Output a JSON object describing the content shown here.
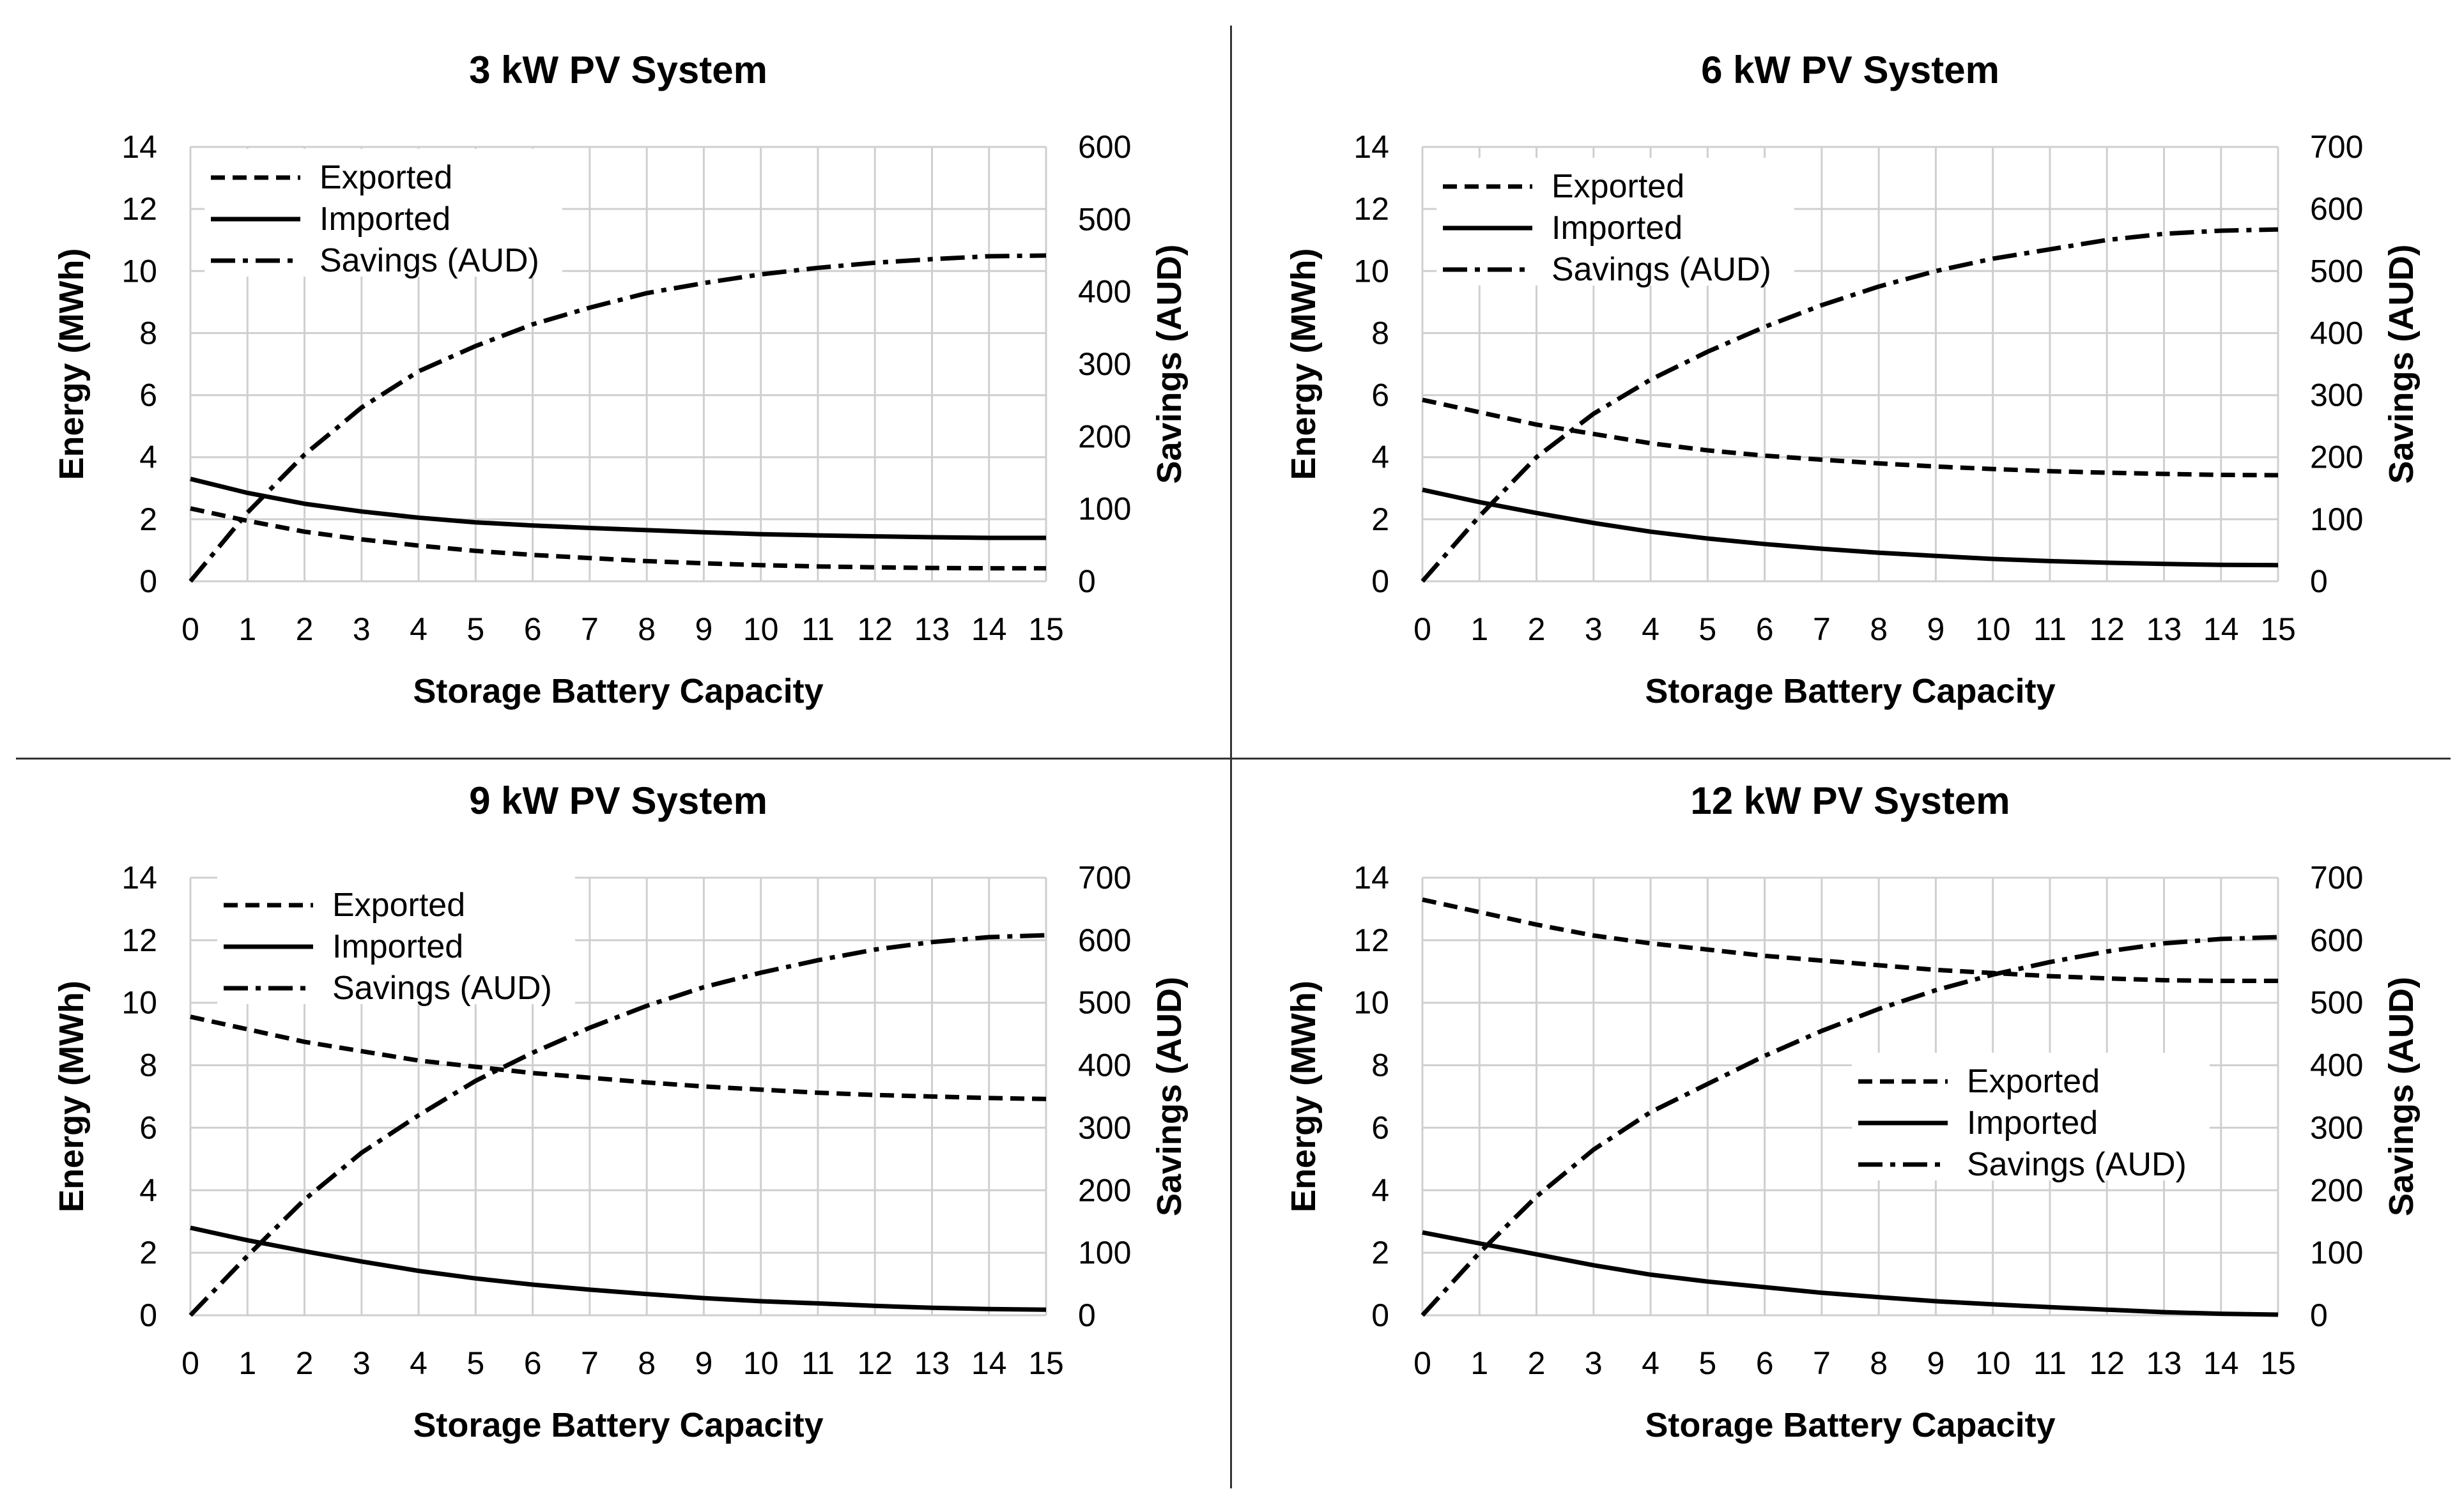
{
  "chart_data": [
    {
      "type": "line",
      "title": "3 kW PV System",
      "xlabel": "Storage Battery Capacity",
      "ylabel": "Energy (MWh)",
      "y2label": "Savings (AUD)",
      "xlim": [
        0,
        15
      ],
      "ylim": [
        0,
        14
      ],
      "y2lim": [
        0,
        600
      ],
      "xticks": [
        "0",
        "1",
        "2",
        "3",
        "4",
        "5",
        "6",
        "7",
        "8",
        "9",
        "10",
        "11",
        "12",
        "13",
        "14",
        "15"
      ],
      "yticks": [
        "0",
        "2",
        "4",
        "6",
        "8",
        "10",
        "12",
        "14"
      ],
      "y2ticks": [
        "0",
        "100",
        "200",
        "300",
        "400",
        "500",
        "600"
      ],
      "grid": true,
      "legend_position": "top-left",
      "x": [
        0,
        1,
        2,
        3,
        4,
        5,
        6,
        7,
        8,
        9,
        10,
        11,
        12,
        13,
        14,
        15
      ],
      "series": [
        {
          "name": "Exported",
          "axis": "left",
          "style": "dashed",
          "values": [
            2.35,
            1.95,
            1.6,
            1.35,
            1.15,
            0.98,
            0.85,
            0.75,
            0.65,
            0.58,
            0.52,
            0.48,
            0.45,
            0.43,
            0.42,
            0.42
          ]
        },
        {
          "name": "Imported",
          "axis": "left",
          "style": "solid",
          "values": [
            3.3,
            2.85,
            2.5,
            2.25,
            2.05,
            1.9,
            1.8,
            1.72,
            1.65,
            1.58,
            1.52,
            1.48,
            1.45,
            1.42,
            1.4,
            1.4
          ]
        },
        {
          "name": "Savings (AUD)",
          "axis": "right",
          "style": "dashdot",
          "values": [
            0,
            95,
            175,
            240,
            290,
            325,
            355,
            378,
            398,
            412,
            424,
            433,
            440,
            445,
            449,
            450
          ]
        }
      ]
    },
    {
      "type": "line",
      "title": "6 kW PV System",
      "xlabel": "Storage Battery Capacity",
      "ylabel": "Energy (MWh)",
      "y2label": "Savings (AUD)",
      "xlim": [
        0,
        15
      ],
      "ylim": [
        0,
        14
      ],
      "y2lim": [
        0,
        700
      ],
      "xticks": [
        "0",
        "1",
        "2",
        "3",
        "4",
        "5",
        "6",
        "7",
        "8",
        "9",
        "10",
        "11",
        "12",
        "13",
        "14",
        "15"
      ],
      "yticks": [
        "0",
        "2",
        "4",
        "6",
        "8",
        "10",
        "12",
        "14"
      ],
      "y2ticks": [
        "0",
        "100",
        "200",
        "300",
        "400",
        "500",
        "600",
        "700"
      ],
      "grid": true,
      "legend_position": "top-left",
      "x": [
        0,
        1,
        2,
        3,
        4,
        5,
        6,
        7,
        8,
        9,
        10,
        11,
        12,
        13,
        14,
        15
      ],
      "series": [
        {
          "name": "Exported",
          "axis": "left",
          "style": "dashed",
          "values": [
            5.85,
            5.45,
            5.05,
            4.75,
            4.45,
            4.22,
            4.05,
            3.92,
            3.8,
            3.7,
            3.62,
            3.55,
            3.5,
            3.46,
            3.43,
            3.42
          ]
        },
        {
          "name": "Imported",
          "axis": "left",
          "style": "solid",
          "values": [
            2.95,
            2.55,
            2.2,
            1.88,
            1.6,
            1.38,
            1.2,
            1.05,
            0.92,
            0.82,
            0.72,
            0.65,
            0.6,
            0.56,
            0.53,
            0.52
          ]
        },
        {
          "name": "Savings (AUD)",
          "axis": "right",
          "style": "dashdot",
          "values": [
            0,
            105,
            200,
            270,
            325,
            370,
            410,
            445,
            475,
            500,
            520,
            535,
            550,
            560,
            565,
            567
          ]
        }
      ]
    },
    {
      "type": "line",
      "title": "9 kW PV System",
      "xlabel": "Storage Battery Capacity",
      "ylabel": "Energy (MWh)",
      "y2label": "Savings (AUD)",
      "xlim": [
        0,
        15
      ],
      "ylim": [
        0,
        14
      ],
      "y2lim": [
        0,
        700
      ],
      "xticks": [
        "0",
        "1",
        "2",
        "3",
        "4",
        "5",
        "6",
        "7",
        "8",
        "9",
        "10",
        "11",
        "12",
        "13",
        "14",
        "15"
      ],
      "yticks": [
        "0",
        "2",
        "4",
        "6",
        "8",
        "10",
        "12",
        "14"
      ],
      "y2ticks": [
        "0",
        "100",
        "200",
        "300",
        "400",
        "500",
        "600",
        "700"
      ],
      "grid": true,
      "legend_position": "top-left",
      "x": [
        0,
        1,
        2,
        3,
        4,
        5,
        6,
        7,
        8,
        9,
        10,
        11,
        12,
        13,
        14,
        15
      ],
      "series": [
        {
          "name": "Exported",
          "axis": "left",
          "style": "dashed",
          "values": [
            9.55,
            9.15,
            8.75,
            8.45,
            8.15,
            7.95,
            7.75,
            7.6,
            7.45,
            7.32,
            7.22,
            7.12,
            7.05,
            7.0,
            6.95,
            6.92
          ]
        },
        {
          "name": "Imported",
          "axis": "left",
          "style": "solid",
          "values": [
            2.8,
            2.4,
            2.05,
            1.72,
            1.42,
            1.18,
            0.98,
            0.82,
            0.68,
            0.55,
            0.45,
            0.38,
            0.3,
            0.24,
            0.2,
            0.18
          ]
        },
        {
          "name": "Savings (AUD)",
          "axis": "right",
          "style": "dashdot",
          "values": [
            0,
            95,
            185,
            260,
            320,
            375,
            420,
            460,
            495,
            525,
            548,
            568,
            585,
            597,
            605,
            608
          ]
        }
      ]
    },
    {
      "type": "line",
      "title": "12 kW PV System",
      "xlabel": "Storage Battery Capacity",
      "ylabel": "Energy (MWh)",
      "y2label": "Savings (AUD)",
      "xlim": [
        0,
        15
      ],
      "ylim": [
        0,
        14
      ],
      "y2lim": [
        0,
        700
      ],
      "xticks": [
        "0",
        "1",
        "2",
        "3",
        "4",
        "5",
        "6",
        "7",
        "8",
        "9",
        "10",
        "11",
        "12",
        "13",
        "14",
        "15"
      ],
      "yticks": [
        "0",
        "2",
        "4",
        "6",
        "8",
        "10",
        "12",
        "14"
      ],
      "y2ticks": [
        "0",
        "100",
        "200",
        "300",
        "400",
        "500",
        "600",
        "700"
      ],
      "grid": true,
      "legend_position": "center-right",
      "x": [
        0,
        1,
        2,
        3,
        4,
        5,
        6,
        7,
        8,
        9,
        10,
        11,
        12,
        13,
        14,
        15
      ],
      "series": [
        {
          "name": "Exported",
          "axis": "left",
          "style": "dashed",
          "values": [
            13.3,
            12.9,
            12.5,
            12.15,
            11.9,
            11.7,
            11.5,
            11.35,
            11.2,
            11.05,
            10.95,
            10.85,
            10.78,
            10.72,
            10.7,
            10.7
          ]
        },
        {
          "name": "Imported",
          "axis": "left",
          "style": "solid",
          "values": [
            2.65,
            2.3,
            1.95,
            1.6,
            1.3,
            1.08,
            0.9,
            0.72,
            0.58,
            0.45,
            0.35,
            0.26,
            0.18,
            0.1,
            0.05,
            0.02
          ]
        },
        {
          "name": "Savings (AUD)",
          "axis": "right",
          "style": "dashdot",
          "values": [
            0,
            100,
            190,
            265,
            325,
            370,
            415,
            455,
            490,
            520,
            545,
            565,
            582,
            595,
            602,
            605
          ]
        }
      ]
    }
  ]
}
